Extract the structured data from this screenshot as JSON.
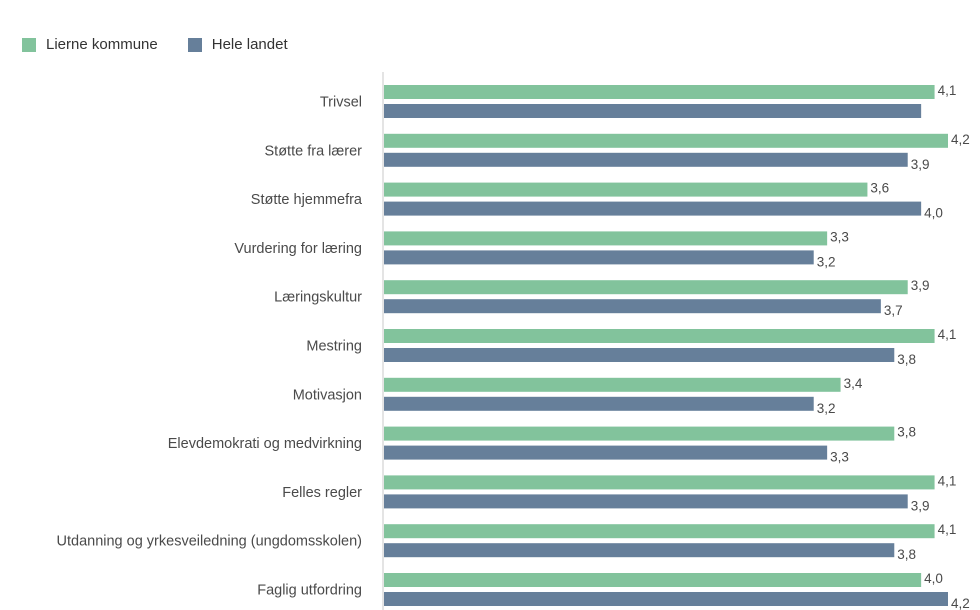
{
  "legend": {
    "series1": "Lierne kommune",
    "series2": "Hele landet"
  },
  "colors": {
    "series1": "#82c39c",
    "series2": "#667f9a",
    "axis": "#c8c8c8"
  },
  "chart_data": {
    "type": "bar",
    "orientation": "horizontal",
    "categories": [
      "Trivsel",
      "Støtte fra lærer",
      "Støtte hjemmefra",
      "Vurdering for læring",
      "Læringskultur",
      "Mestring",
      "Motivasjon",
      "Elevdemokrati og medvirkning",
      "Felles regler",
      "Utdanning og yrkesveiledning (ungdomsskolen)",
      "Faglig utfordring"
    ],
    "series": [
      {
        "name": "Lierne kommune",
        "values": [
          4.1,
          4.2,
          3.6,
          3.3,
          3.9,
          4.1,
          3.4,
          3.8,
          4.1,
          4.1,
          4.0
        ],
        "labels": [
          "4,1",
          "4,2",
          "3,6",
          "3,3",
          "3,9",
          "4,1",
          "3,4",
          "3,8",
          "4,1",
          "4,1",
          "4,0"
        ]
      },
      {
        "name": "Hele landet",
        "values": [
          4.0,
          3.9,
          4.0,
          3.2,
          3.7,
          3.8,
          3.2,
          3.3,
          3.9,
          3.8,
          4.2
        ],
        "labels": [
          "",
          "3,9",
          "4,0",
          "3,2",
          "3,7",
          "3,8",
          "3,2",
          "3,3",
          "3,9",
          "3,8",
          "4,2"
        ]
      }
    ],
    "xlim": [
      0,
      4.2
    ],
    "legend_position": "top-left",
    "grid": false
  }
}
